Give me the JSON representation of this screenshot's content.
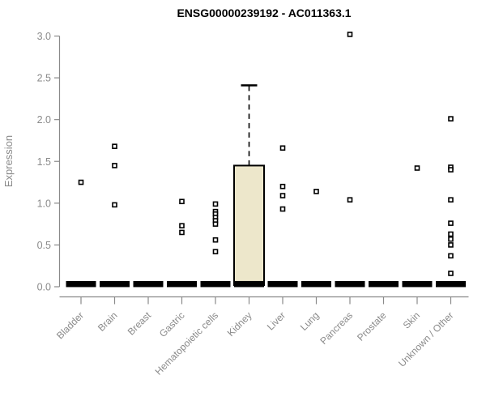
{
  "chart_data": {
    "type": "boxplot",
    "title": "ENSG00000239192 - AC011363.1",
    "ylabel": "Expression",
    "ylim": [
      0.0,
      3.0
    ],
    "yticks": [
      "0.0",
      "0.5",
      "1.0",
      "1.5",
      "2.0",
      "2.5",
      "3.0"
    ],
    "grid": false,
    "legend": "none",
    "marker": "open-square",
    "colors": {
      "axis": "#8a8a8a",
      "tick_text": "#8a8a8a",
      "title_text": "#000000",
      "box_fill": "#ede7cb",
      "box_stroke": "#000000",
      "flat_bar": "#000000",
      "marker_stroke": "#000000",
      "marker_fill": "#ffffff",
      "background": "#ffffff"
    },
    "categories": [
      "Bladder",
      "Brain",
      "Breast",
      "Gastric",
      "Hematopoietic cells",
      "Kidney",
      "Liver",
      "Lung",
      "Pancreas",
      "Prostate",
      "Skin",
      "Unknown / Other"
    ],
    "boxes": [
      {
        "category": "Bladder",
        "median": 0.02,
        "q1": 0.0,
        "q3": 0.04,
        "whisker_high": null,
        "outliers": [
          1.25
        ]
      },
      {
        "category": "Brain",
        "median": 0.02,
        "q1": 0.0,
        "q3": 0.04,
        "whisker_high": null,
        "outliers": [
          1.68,
          1.45,
          0.98
        ]
      },
      {
        "category": "Breast",
        "median": 0.02,
        "q1": 0.0,
        "q3": 0.04,
        "whisker_high": null,
        "outliers": []
      },
      {
        "category": "Gastric",
        "median": 0.02,
        "q1": 0.0,
        "q3": 0.04,
        "whisker_high": null,
        "outliers": [
          1.02,
          0.73,
          0.65
        ]
      },
      {
        "category": "Hematopoietic cells",
        "median": 0.02,
        "q1": 0.0,
        "q3": 0.04,
        "whisker_high": null,
        "outliers": [
          0.99,
          0.9,
          0.87,
          0.83,
          0.79,
          0.75,
          0.56,
          0.42
        ]
      },
      {
        "category": "Kidney",
        "median": 0.02,
        "q1": 0.02,
        "q3": 1.45,
        "whisker_high": 2.41,
        "outliers": []
      },
      {
        "category": "Liver",
        "median": 0.02,
        "q1": 0.0,
        "q3": 0.04,
        "whisker_high": null,
        "outliers": [
          1.66,
          1.2,
          1.09,
          0.93
        ]
      },
      {
        "category": "Lung",
        "median": 0.02,
        "q1": 0.0,
        "q3": 0.04,
        "whisker_high": null,
        "outliers": [
          1.14
        ]
      },
      {
        "category": "Pancreas",
        "median": 0.02,
        "q1": 0.0,
        "q3": 0.04,
        "whisker_high": null,
        "outliers": [
          3.02,
          1.04
        ]
      },
      {
        "category": "Prostate",
        "median": 0.02,
        "q1": 0.0,
        "q3": 0.04,
        "whisker_high": null,
        "outliers": []
      },
      {
        "category": "Skin",
        "median": 0.02,
        "q1": 0.0,
        "q3": 0.04,
        "whisker_high": null,
        "outliers": [
          1.42
        ]
      },
      {
        "category": "Unknown / Other",
        "median": 0.02,
        "q1": 0.0,
        "q3": 0.04,
        "whisker_high": null,
        "outliers": [
          2.01,
          1.43,
          1.4,
          1.04,
          0.76,
          0.63,
          0.57,
          0.5,
          0.37,
          0.16
        ]
      }
    ]
  }
}
